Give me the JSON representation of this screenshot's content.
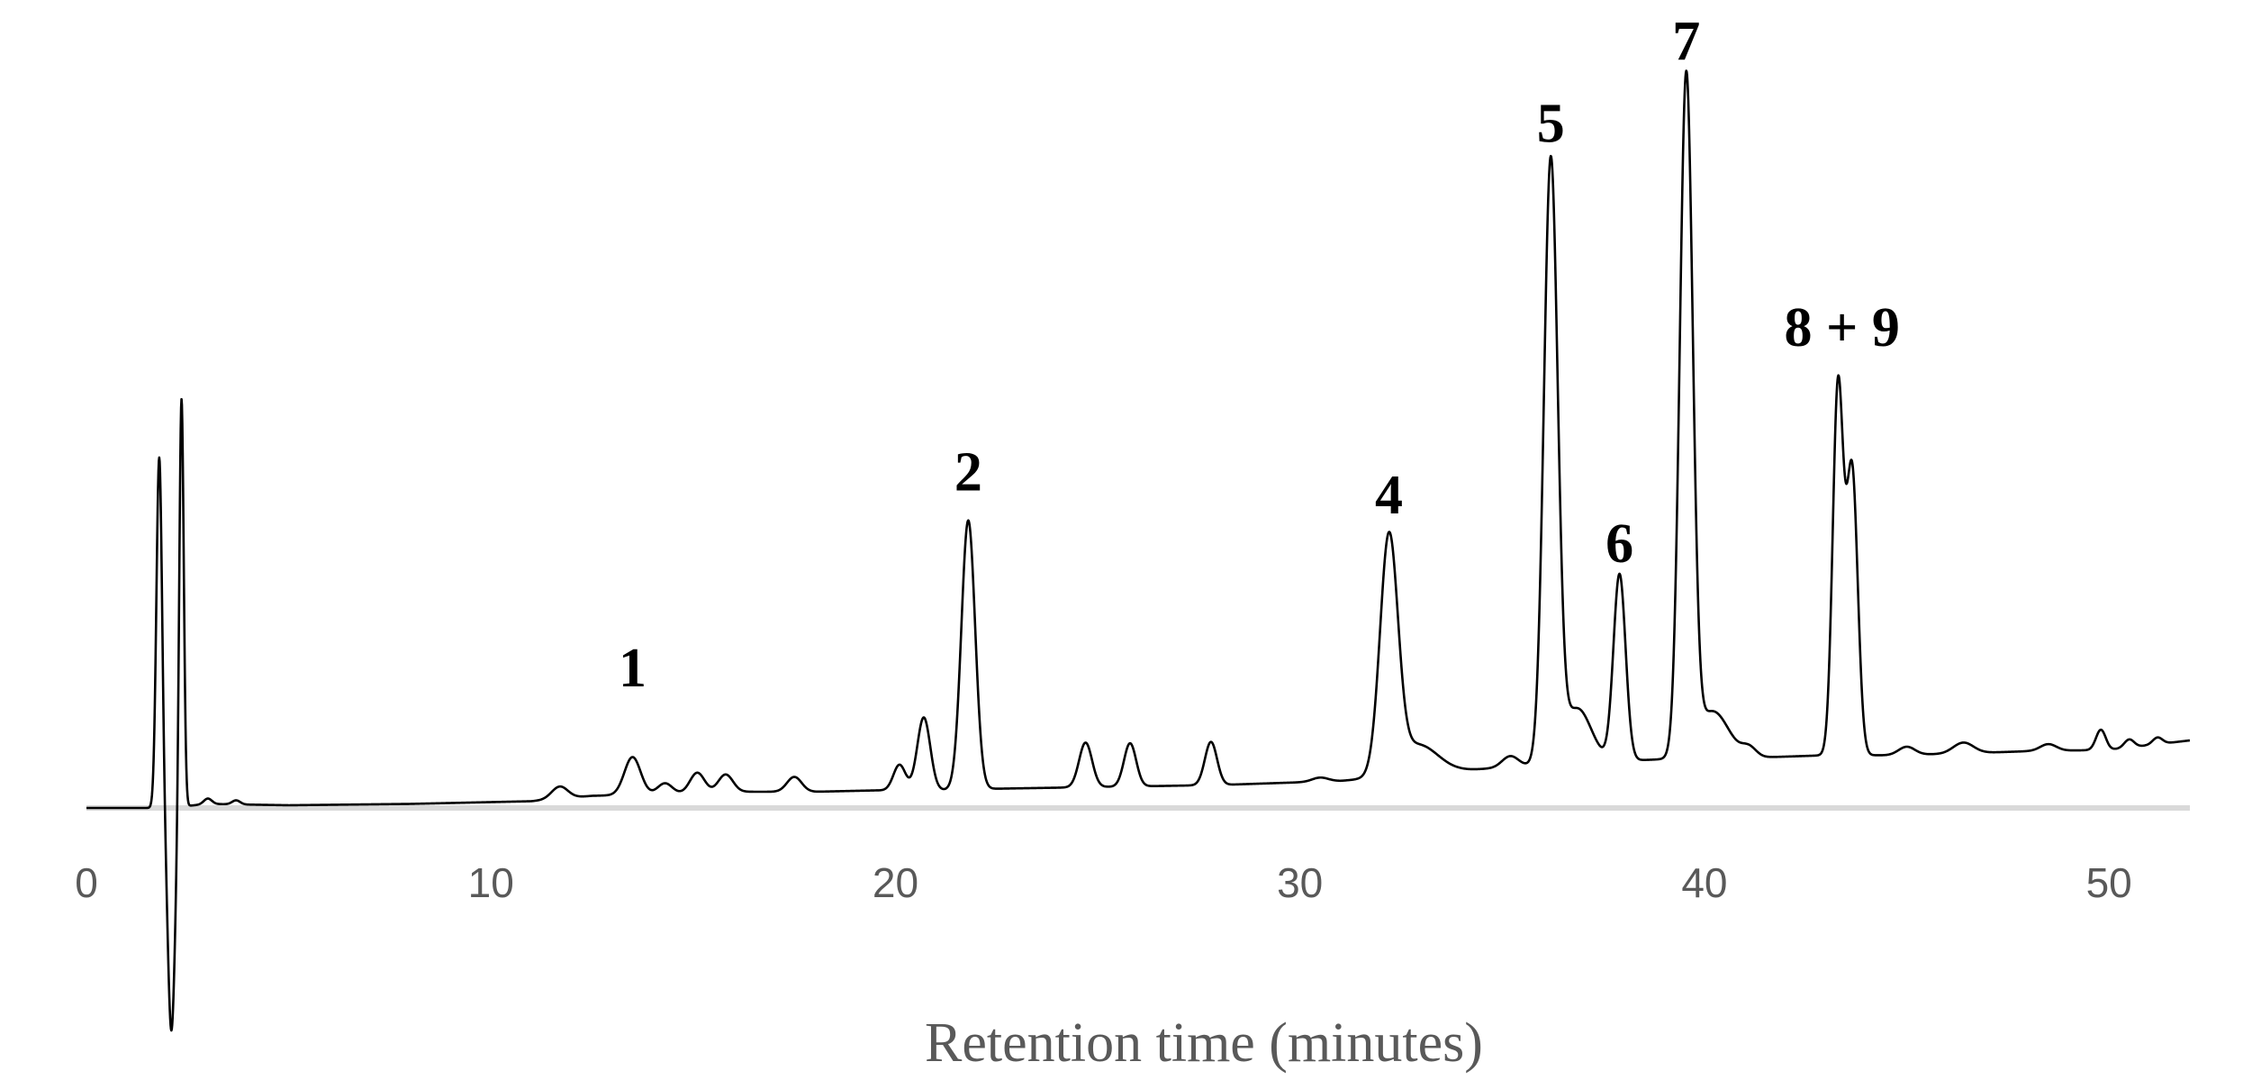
{
  "chart_data": {
    "type": "line",
    "title": "",
    "xlabel": "Retention time (minutes)",
    "ylabel": "",
    "xlim": [
      0,
      52
    ],
    "ylim": [
      -1.5,
      5.5
    ],
    "x_ticks": [
      0,
      10,
      20,
      30,
      40,
      50
    ],
    "grid": false,
    "legend": "none",
    "colors": {
      "trace": "#000000",
      "axis": "#d9d9d9",
      "tick_text": "#595959"
    },
    "baseline": [
      [
        0,
        0.0
      ],
      [
        2.0,
        0.0
      ],
      [
        3,
        0.03
      ],
      [
        5,
        0.02
      ],
      [
        8,
        0.03
      ],
      [
        11,
        0.05
      ],
      [
        12.5,
        0.09
      ],
      [
        14,
        0.1
      ],
      [
        16,
        0.12
      ],
      [
        18,
        0.12
      ],
      [
        19.5,
        0.13
      ],
      [
        21,
        0.13
      ],
      [
        22,
        0.14
      ],
      [
        24,
        0.15
      ],
      [
        26,
        0.16
      ],
      [
        28,
        0.17
      ],
      [
        30,
        0.19
      ],
      [
        31,
        0.2
      ],
      [
        33,
        0.25
      ],
      [
        35,
        0.3
      ],
      [
        37,
        0.34
      ],
      [
        39,
        0.36
      ],
      [
        41,
        0.37
      ],
      [
        42,
        0.38
      ],
      [
        43,
        0.39
      ],
      [
        44.5,
        0.39
      ],
      [
        46,
        0.4
      ],
      [
        48,
        0.42
      ],
      [
        50,
        0.43
      ],
      [
        52,
        0.5
      ]
    ],
    "peaks": [
      {
        "x": 1.8,
        "height": 2.6,
        "width": 0.07
      },
      {
        "x": 2.1,
        "height": -1.65,
        "width": 0.09
      },
      {
        "x": 2.35,
        "height": 3.05,
        "width": 0.055
      },
      {
        "x": 3.0,
        "height": 0.04,
        "width": 0.1
      },
      {
        "x": 3.7,
        "height": 0.03,
        "width": 0.1
      },
      {
        "x": 11.7,
        "height": 0.09,
        "width": 0.2
      },
      {
        "x": 13.5,
        "height": 0.28,
        "width": 0.2
      },
      {
        "x": 14.3,
        "height": 0.08,
        "width": 0.18
      },
      {
        "x": 15.1,
        "height": 0.15,
        "width": 0.18
      },
      {
        "x": 15.8,
        "height": 0.13,
        "width": 0.18
      },
      {
        "x": 17.5,
        "height": 0.11,
        "width": 0.18
      },
      {
        "x": 20.1,
        "height": 0.19,
        "width": 0.15
      },
      {
        "x": 20.7,
        "height": 0.54,
        "width": 0.16
      },
      {
        "x": 21.8,
        "height": 1.99,
        "width": 0.17
      },
      {
        "x": 24.7,
        "height": 0.33,
        "width": 0.16
      },
      {
        "x": 25.8,
        "height": 0.32,
        "width": 0.15
      },
      {
        "x": 27.8,
        "height": 0.32,
        "width": 0.15
      },
      {
        "x": 30.5,
        "height": 0.03,
        "width": 0.2
      },
      {
        "x": 32.2,
        "height": 1.73,
        "width": 0.22
      },
      {
        "x": 32.9,
        "height": 0.22,
        "width": 0.5
      },
      {
        "x": 35.2,
        "height": 0.08,
        "width": 0.2
      },
      {
        "x": 36.2,
        "height": 4.43,
        "width": 0.17
      },
      {
        "x": 36.85,
        "height": 0.4,
        "width": 0.35
      },
      {
        "x": 37.9,
        "height": 1.38,
        "width": 0.15
      },
      {
        "x": 39.55,
        "height": 5.0,
        "width": 0.16
      },
      {
        "x": 40.2,
        "height": 0.35,
        "width": 0.4
      },
      {
        "x": 41.1,
        "height": 0.07,
        "width": 0.18
      },
      {
        "x": 43.3,
        "height": 2.71,
        "width": 0.13
      },
      {
        "x": 43.65,
        "height": 2.1,
        "width": 0.14
      },
      {
        "x": 45.0,
        "height": 0.06,
        "width": 0.2
      },
      {
        "x": 46.4,
        "height": 0.08,
        "width": 0.25
      },
      {
        "x": 48.5,
        "height": 0.05,
        "width": 0.2
      },
      {
        "x": 49.8,
        "height": 0.15,
        "width": 0.12
      },
      {
        "x": 50.5,
        "height": 0.06,
        "width": 0.12
      },
      {
        "x": 51.2,
        "height": 0.05,
        "width": 0.12
      }
    ],
    "annotations": [
      {
        "text": "1",
        "x": 13.5,
        "y": 0.9
      },
      {
        "text": "2",
        "x": 21.8,
        "y": 2.35
      },
      {
        "text": "4",
        "x": 32.2,
        "y": 2.18
      },
      {
        "text": "5",
        "x": 36.2,
        "y": 4.93
      },
      {
        "text": "6",
        "x": 37.9,
        "y": 1.82
      },
      {
        "text": "7",
        "x": 39.55,
        "y": 5.54
      },
      {
        "text": "8 + 9",
        "x": 43.4,
        "y": 3.42
      }
    ]
  }
}
